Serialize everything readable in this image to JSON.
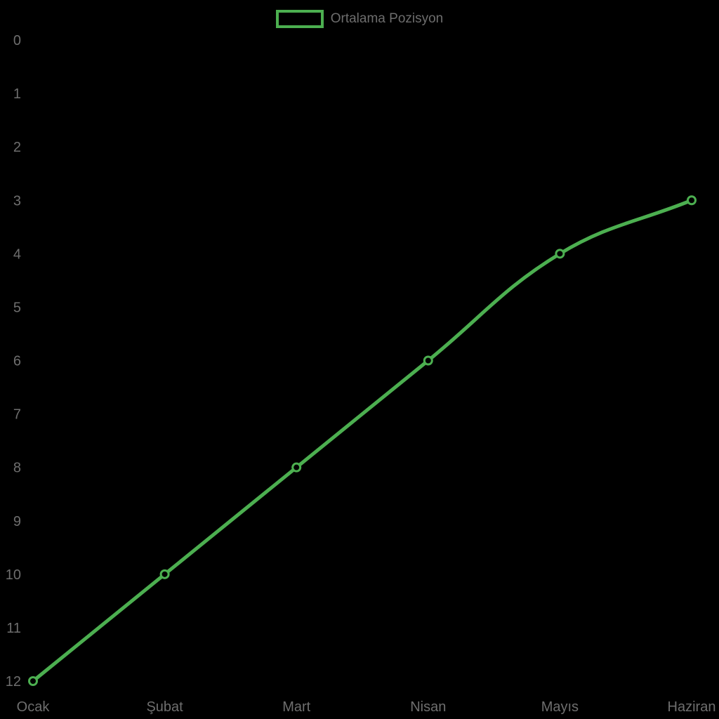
{
  "colors": {
    "line": "#4CAF50",
    "axis_text": "#6e6e6e",
    "legend_text": "#6d6d6d",
    "background": "#000000"
  },
  "legend": {
    "label": "Ortalama Pozisyon"
  },
  "chart_data": {
    "type": "line",
    "categories": [
      "Ocak",
      "Şubat",
      "Mart",
      "Nisan",
      "Mayıs",
      "Haziran"
    ],
    "series": [
      {
        "name": "Ortalama Pozisyon",
        "values": [
          12,
          10,
          8,
          6,
          4,
          3
        ]
      }
    ],
    "ylim": [
      0,
      12
    ],
    "y_axis_inverted": true,
    "y_ticks": [
      0,
      1,
      2,
      3,
      4,
      5,
      6,
      7,
      8,
      9,
      10,
      11,
      12
    ],
    "grid": false,
    "legend_position": "top",
    "marker_style": "open-circle",
    "line_tension": 0.4
  }
}
